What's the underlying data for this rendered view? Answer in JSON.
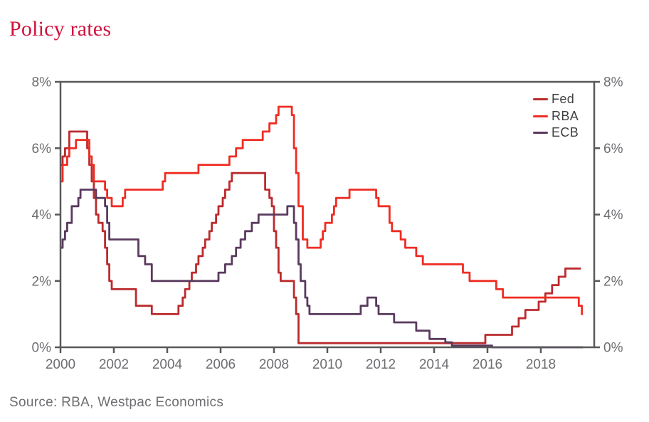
{
  "title": "Policy rates",
  "footer": {
    "source": "Source: RBA, Westpac Economics"
  },
  "colors": {
    "title": "#d0123d",
    "axis": "#58595b",
    "tick_label": "#6d6e71",
    "legend_text": "#3f4042",
    "background": "#ffffff"
  },
  "chart_data": {
    "type": "line",
    "style": "step-after",
    "title": "Policy rates",
    "xlabel": "",
    "ylabel": "",
    "x_range": [
      2000,
      2020
    ],
    "y_range": [
      0,
      8
    ],
    "grid": false,
    "legend_position": "top-right",
    "x_ticks": [
      2000,
      2002,
      2004,
      2006,
      2008,
      2010,
      2012,
      2014,
      2016,
      2018
    ],
    "x_tick_labels": [
      "2000",
      "2002",
      "2004",
      "2006",
      "2008",
      "2010",
      "2012",
      "2014",
      "2016",
      "2018"
    ],
    "y_ticks": [
      0,
      2,
      4,
      6,
      8
    ],
    "y_tick_labels": [
      "0%",
      "2%",
      "4%",
      "6%",
      "8%"
    ],
    "y_axis_sides": [
      "left",
      "right"
    ],
    "series": [
      {
        "name": "Fed",
        "color": "#bb2b2e",
        "points": [
          [
            2000.0,
            5.5
          ],
          [
            2000.08,
            5.75
          ],
          [
            2000.17,
            6.0
          ],
          [
            2000.33,
            6.5
          ],
          [
            2001.0,
            6.0
          ],
          [
            2001.08,
            5.5
          ],
          [
            2001.17,
            5.0
          ],
          [
            2001.25,
            4.5
          ],
          [
            2001.33,
            4.0
          ],
          [
            2001.42,
            3.75
          ],
          [
            2001.58,
            3.5
          ],
          [
            2001.67,
            3.0
          ],
          [
            2001.75,
            2.5
          ],
          [
            2001.83,
            2.0
          ],
          [
            2001.92,
            1.75
          ],
          [
            2002.83,
            1.25
          ],
          [
            2003.42,
            1.0
          ],
          [
            2004.42,
            1.25
          ],
          [
            2004.58,
            1.5
          ],
          [
            2004.67,
            1.75
          ],
          [
            2004.83,
            2.0
          ],
          [
            2004.92,
            2.25
          ],
          [
            2005.08,
            2.5
          ],
          [
            2005.17,
            2.75
          ],
          [
            2005.33,
            3.0
          ],
          [
            2005.42,
            3.25
          ],
          [
            2005.58,
            3.5
          ],
          [
            2005.67,
            3.75
          ],
          [
            2005.83,
            4.0
          ],
          [
            2005.92,
            4.25
          ],
          [
            2006.08,
            4.5
          ],
          [
            2006.17,
            4.75
          ],
          [
            2006.33,
            5.0
          ],
          [
            2006.42,
            5.25
          ],
          [
            2007.67,
            4.75
          ],
          [
            2007.83,
            4.5
          ],
          [
            2007.92,
            4.25
          ],
          [
            2008.0,
            3.5
          ],
          [
            2008.08,
            3.0
          ],
          [
            2008.17,
            2.25
          ],
          [
            2008.25,
            2.0
          ],
          [
            2008.75,
            1.5
          ],
          [
            2008.83,
            1.0
          ],
          [
            2008.92,
            0.125
          ],
          [
            2015.92,
            0.375
          ],
          [
            2016.92,
            0.625
          ],
          [
            2017.17,
            0.875
          ],
          [
            2017.42,
            1.125
          ],
          [
            2017.92,
            1.375
          ],
          [
            2018.17,
            1.625
          ],
          [
            2018.42,
            1.875
          ],
          [
            2018.67,
            2.125
          ],
          [
            2018.92,
            2.375
          ],
          [
            2019.5,
            2.375
          ]
        ]
      },
      {
        "name": "RBA",
        "color": "#ee2d23",
        "points": [
          [
            2000.0,
            5.0
          ],
          [
            2000.08,
            5.5
          ],
          [
            2000.25,
            5.75
          ],
          [
            2000.33,
            6.0
          ],
          [
            2000.58,
            6.25
          ],
          [
            2001.08,
            5.75
          ],
          [
            2001.17,
            5.5
          ],
          [
            2001.25,
            5.0
          ],
          [
            2001.67,
            4.75
          ],
          [
            2001.75,
            4.5
          ],
          [
            2001.92,
            4.25
          ],
          [
            2002.33,
            4.5
          ],
          [
            2002.42,
            4.75
          ],
          [
            2003.83,
            5.0
          ],
          [
            2003.92,
            5.25
          ],
          [
            2005.17,
            5.5
          ],
          [
            2006.33,
            5.75
          ],
          [
            2006.58,
            6.0
          ],
          [
            2006.83,
            6.25
          ],
          [
            2007.58,
            6.5
          ],
          [
            2007.83,
            6.75
          ],
          [
            2008.08,
            7.0
          ],
          [
            2008.17,
            7.25
          ],
          [
            2008.67,
            7.0
          ],
          [
            2008.75,
            6.0
          ],
          [
            2008.83,
            5.25
          ],
          [
            2008.92,
            4.25
          ],
          [
            2009.08,
            3.25
          ],
          [
            2009.25,
            3.0
          ],
          [
            2009.75,
            3.25
          ],
          [
            2009.83,
            3.5
          ],
          [
            2009.92,
            3.75
          ],
          [
            2010.17,
            4.0
          ],
          [
            2010.25,
            4.25
          ],
          [
            2010.33,
            4.5
          ],
          [
            2010.83,
            4.75
          ],
          [
            2011.83,
            4.5
          ],
          [
            2011.92,
            4.25
          ],
          [
            2012.33,
            3.75
          ],
          [
            2012.42,
            3.5
          ],
          [
            2012.75,
            3.25
          ],
          [
            2012.92,
            3.0
          ],
          [
            2013.33,
            2.75
          ],
          [
            2013.58,
            2.5
          ],
          [
            2015.08,
            2.25
          ],
          [
            2015.33,
            2.0
          ],
          [
            2016.33,
            1.75
          ],
          [
            2016.58,
            1.5
          ],
          [
            2019.42,
            1.25
          ],
          [
            2019.54,
            1.0
          ],
          [
            2019.58,
            1.0
          ]
        ]
      },
      {
        "name": "ECB",
        "color": "#5a3a5e",
        "points": [
          [
            2000.0,
            3.0
          ],
          [
            2000.08,
            3.25
          ],
          [
            2000.17,
            3.5
          ],
          [
            2000.25,
            3.75
          ],
          [
            2000.42,
            4.25
          ],
          [
            2000.67,
            4.5
          ],
          [
            2000.75,
            4.75
          ],
          [
            2001.33,
            4.5
          ],
          [
            2001.67,
            4.25
          ],
          [
            2001.75,
            3.75
          ],
          [
            2001.83,
            3.25
          ],
          [
            2002.92,
            2.75
          ],
          [
            2003.17,
            2.5
          ],
          [
            2003.42,
            2.0
          ],
          [
            2005.92,
            2.25
          ],
          [
            2006.17,
            2.5
          ],
          [
            2006.42,
            2.75
          ],
          [
            2006.58,
            3.0
          ],
          [
            2006.75,
            3.25
          ],
          [
            2006.92,
            3.5
          ],
          [
            2007.17,
            3.75
          ],
          [
            2007.42,
            4.0
          ],
          [
            2008.5,
            4.25
          ],
          [
            2008.75,
            3.75
          ],
          [
            2008.83,
            3.25
          ],
          [
            2008.92,
            2.5
          ],
          [
            2009.0,
            2.0
          ],
          [
            2009.17,
            1.5
          ],
          [
            2009.25,
            1.25
          ],
          [
            2009.33,
            1.0
          ],
          [
            2011.25,
            1.25
          ],
          [
            2011.5,
            1.5
          ],
          [
            2011.83,
            1.25
          ],
          [
            2011.92,
            1.0
          ],
          [
            2012.5,
            0.75
          ],
          [
            2013.33,
            0.5
          ],
          [
            2013.83,
            0.25
          ],
          [
            2014.42,
            0.15
          ],
          [
            2014.67,
            0.05
          ],
          [
            2016.17,
            0.0
          ],
          [
            2019.58,
            0.0
          ]
        ]
      }
    ]
  }
}
